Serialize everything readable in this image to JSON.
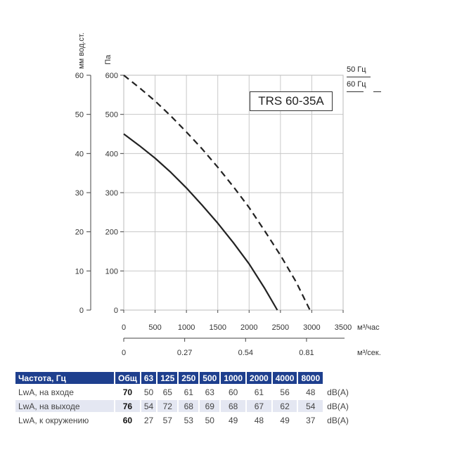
{
  "chart_data": {
    "type": "line",
    "title": "TRS 60-35A",
    "y_left_label": "мм вод.ст.",
    "y_right_label": "Па",
    "y_mm_ticks": [
      "0",
      "10",
      "20",
      "30",
      "40",
      "50",
      "60"
    ],
    "y_pa_ticks": [
      "0",
      "100",
      "200",
      "300",
      "400",
      "500",
      "600"
    ],
    "x_unit_label": "м³/час",
    "x_ticks": [
      "0",
      "500",
      "1000",
      "1500",
      "2000",
      "2500",
      "3000",
      "3500"
    ],
    "x2_unit_label": "м³/сек.",
    "x2_ticks": [
      "0",
      "0.27",
      "0.54",
      "0.81"
    ],
    "xlim": [
      0,
      3500
    ],
    "ylim": [
      0,
      600
    ],
    "grid": true,
    "legend": [
      {
        "label": "50 Гц",
        "style": "solid"
      },
      {
        "label": "60 Гц",
        "style": "dashed"
      }
    ],
    "series": [
      {
        "name": "50 Гц",
        "style": "solid",
        "x": [
          0,
          250,
          500,
          750,
          1000,
          1250,
          1500,
          1750,
          2000,
          2250,
          2450
        ],
        "y": [
          450,
          420,
          388,
          352,
          312,
          268,
          222,
          172,
          118,
          55,
          0
        ]
      },
      {
        "name": "60 Гц",
        "style": "dashed",
        "x": [
          0,
          250,
          500,
          750,
          1000,
          1250,
          1500,
          1750,
          2000,
          2250,
          2500,
          2750,
          2970
        ],
        "y": [
          600,
          568,
          534,
          496,
          455,
          412,
          365,
          315,
          262,
          202,
          140,
          72,
          0
        ]
      }
    ]
  },
  "table": {
    "header": [
      "Частота, Гц",
      "Общ",
      "63",
      "125",
      "250",
      "500",
      "1000",
      "2000",
      "4000",
      "8000"
    ],
    "rows": [
      {
        "label": "LwA, на входе",
        "values": [
          "70",
          "50",
          "65",
          "61",
          "63",
          "60",
          "61",
          "56",
          "48"
        ],
        "unit": "dB(A)"
      },
      {
        "label": "LwA, на выходе",
        "values": [
          "76",
          "54",
          "72",
          "68",
          "69",
          "68",
          "67",
          "62",
          "54"
        ],
        "unit": "dB(A)"
      },
      {
        "label": "LwA, к окружению",
        "values": [
          "60",
          "27",
          "57",
          "53",
          "50",
          "49",
          "48",
          "49",
          "37"
        ],
        "unit": "dB(A)"
      }
    ]
  }
}
